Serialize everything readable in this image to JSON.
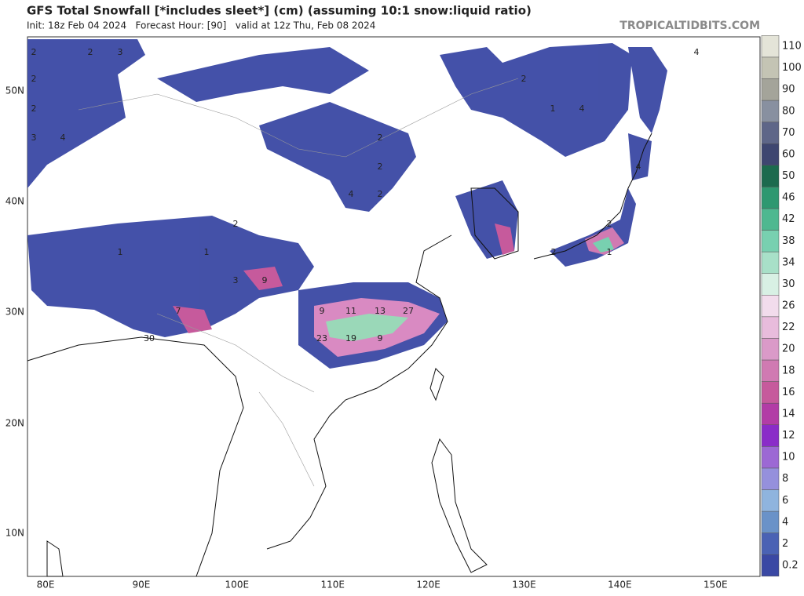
{
  "header": {
    "title": "GFS Total Snowfall [*includes sleet*] (cm) (assuming 10:1 snow:liquid ratio)",
    "subtitle": "Init: 18z Feb 04 2024   Forecast Hour: [90]   valid at 12z Thu, Feb 08 2024",
    "brand": "TROPICALTIDBITS.COM"
  },
  "latitude_labels": [
    "50N",
    "40N",
    "30N",
    "20N",
    "10N"
  ],
  "longitude_labels": [
    "80E",
    "90E",
    "100E",
    "110E",
    "120E",
    "130E",
    "140E",
    "150E"
  ],
  "colorbar": {
    "levels": [
      {
        "label": 0.2,
        "color": "#3a48a4"
      },
      {
        "label": 2,
        "color": "#4a62b4"
      },
      {
        "label": 4,
        "color": "#6a92c8"
      },
      {
        "label": 6,
        "color": "#8fb4de"
      },
      {
        "label": 8,
        "color": "#9590dc"
      },
      {
        "label": 10,
        "color": "#9c68d4"
      },
      {
        "label": 12,
        "color": "#8a2cc8"
      },
      {
        "label": 14,
        "color": "#b23ca6"
      },
      {
        "label": 16,
        "color": "#c65a9c"
      },
      {
        "label": 18,
        "color": "#d07ab2"
      },
      {
        "label": 20,
        "color": "#da9ac8"
      },
      {
        "label": 22,
        "color": "#e8bcdc"
      },
      {
        "label": 26,
        "color": "#f2dcec"
      },
      {
        "label": 30,
        "color": "#d8f0e4"
      },
      {
        "label": 34,
        "color": "#a8e0c8"
      },
      {
        "label": 38,
        "color": "#78d0b0"
      },
      {
        "label": 42,
        "color": "#4eb890"
      },
      {
        "label": 46,
        "color": "#2e9870"
      },
      {
        "label": 50,
        "color": "#1c6a4e"
      },
      {
        "label": 60,
        "color": "#3e4670"
      },
      {
        "label": 70,
        "color": "#5e6688"
      },
      {
        "label": 80,
        "color": "#8890a0"
      },
      {
        "label": 90,
        "color": "#a4a49a"
      },
      {
        "label": 100,
        "color": "#c4c4b4"
      },
      {
        "label": 110,
        "color": "#e4e4d8"
      }
    ]
  },
  "map_labels": [
    2,
    2,
    3,
    4,
    2,
    2,
    2,
    1,
    4,
    3,
    4,
    2,
    2,
    4,
    4,
    2,
    2,
    2,
    1,
    1,
    3,
    9,
    7,
    9,
    11,
    13,
    27,
    30,
    23,
    19,
    9,
    2,
    1
  ]
}
